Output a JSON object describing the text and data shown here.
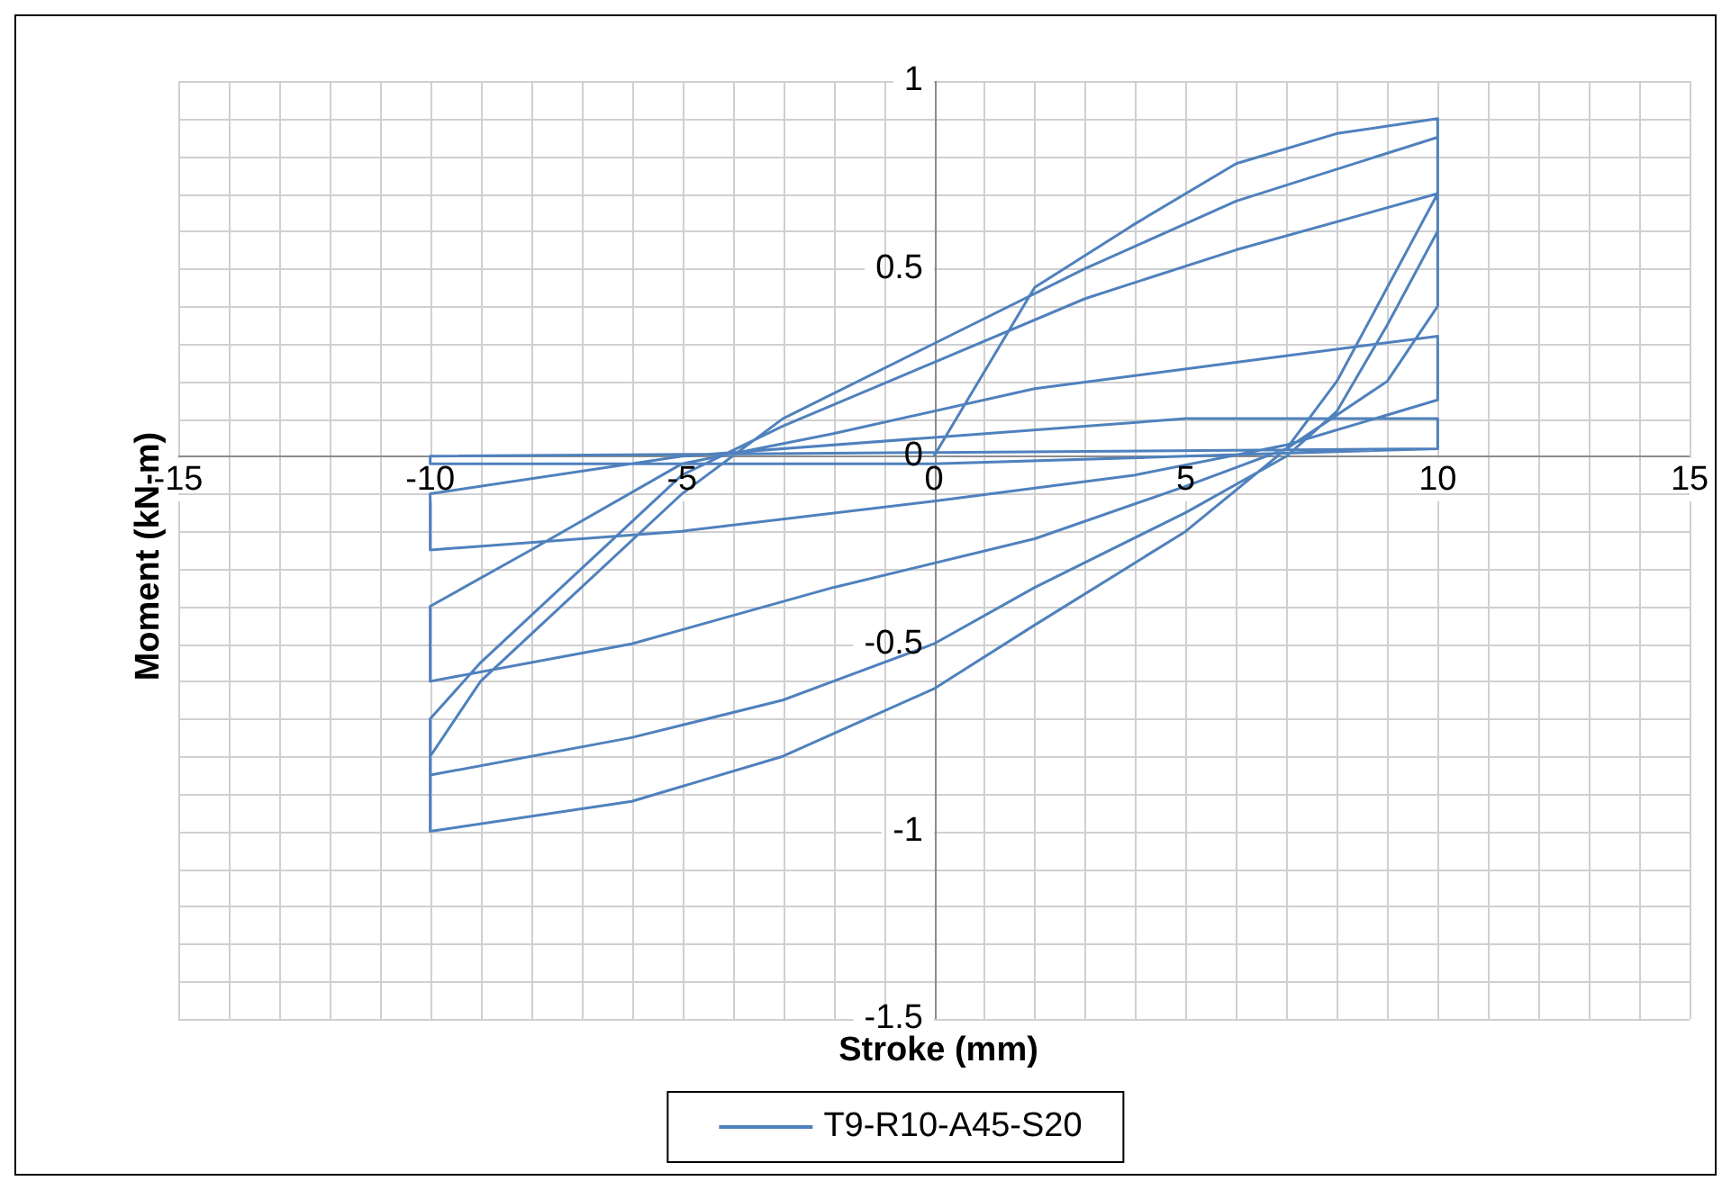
{
  "chart_data": {
    "type": "line",
    "xlabel": "Stroke (mm)",
    "ylabel": "Moment (kN-m)",
    "xlim": [
      -15,
      15
    ],
    "ylim": [
      -1.5,
      1
    ],
    "xticks": [
      -15,
      {
        "value": -14,
        "label": null
      },
      {
        "value": -13,
        "label": null
      },
      {
        "value": -12,
        "label": null
      },
      {
        "value": -11,
        "label": null
      },
      -10,
      {
        "value": -9,
        "label": null
      },
      {
        "value": -8,
        "label": null
      },
      {
        "value": -7,
        "label": null
      },
      {
        "value": -6,
        "label": null
      },
      -5,
      {
        "value": -4,
        "label": null
      },
      {
        "value": -3,
        "label": null
      },
      {
        "value": -2,
        "label": null
      },
      {
        "value": -1,
        "label": null
      },
      0,
      {
        "value": 1,
        "label": null
      },
      {
        "value": 2,
        "label": null
      },
      {
        "value": 3,
        "label": null
      },
      {
        "value": 4,
        "label": null
      },
      5,
      {
        "value": 6,
        "label": null
      },
      {
        "value": 7,
        "label": null
      },
      {
        "value": 8,
        "label": null
      },
      {
        "value": 9,
        "label": null
      },
      10,
      {
        "value": 11,
        "label": null
      },
      {
        "value": 12,
        "label": null
      },
      {
        "value": 13,
        "label": null
      },
      {
        "value": 14,
        "label": null
      },
      15
    ],
    "yticks": [
      -1.5,
      {
        "value": -1.4,
        "label": null
      },
      {
        "value": -1.3,
        "label": null
      },
      {
        "value": -1.2,
        "label": null
      },
      {
        "value": -1.1,
        "label": null
      },
      -1,
      {
        "value": -0.9,
        "label": null
      },
      {
        "value": -0.8,
        "label": null
      },
      {
        "value": -0.7,
        "label": null
      },
      {
        "value": -0.6,
        "label": null
      },
      -0.5,
      {
        "value": -0.4,
        "label": null
      },
      {
        "value": -0.3,
        "label": null
      },
      {
        "value": -0.2,
        "label": null
      },
      {
        "value": -0.1,
        "label": null
      },
      0,
      {
        "value": 0.1,
        "label": null
      },
      {
        "value": 0.2,
        "label": null
      },
      {
        "value": 0.3,
        "label": null
      },
      {
        "value": 0.4,
        "label": null
      },
      0.5,
      {
        "value": 0.6,
        "label": null
      },
      {
        "value": 0.7,
        "label": null
      },
      {
        "value": 0.8,
        "label": null
      },
      {
        "value": 0.9,
        "label": null
      },
      1
    ],
    "grid": true,
    "legend": "bottom",
    "marker": "none",
    "line_style": "solid",
    "series": [
      {
        "name": "T9-R10-A45-S20",
        "color": "#4f81bd",
        "x": [
          0,
          2,
          4,
          6,
          8,
          10,
          10,
          9,
          8,
          7,
          5,
          2,
          0,
          -3,
          -6,
          -10,
          -10,
          -9,
          -7,
          -5,
          -3,
          0,
          3,
          6,
          10,
          10,
          9,
          8,
          7,
          5,
          2,
          0,
          -3,
          -6,
          -10,
          -10,
          -9,
          -7,
          -5,
          -3,
          0,
          3,
          6,
          10,
          10,
          9,
          7,
          5,
          2,
          -2,
          -6,
          -10,
          -10,
          -8,
          -5,
          -2,
          2,
          6,
          10,
          10,
          7,
          4,
          0,
          -5,
          -10,
          -10,
          -5,
          0,
          5,
          10,
          10,
          5,
          0,
          -10,
          -10,
          0,
          10
        ],
        "values": [
          0,
          0.45,
          0.62,
          0.78,
          0.86,
          0.9,
          0.7,
          0.45,
          0.2,
          0.02,
          -0.2,
          -0.45,
          -0.62,
          -0.8,
          -0.92,
          -1.0,
          -0.8,
          -0.6,
          -0.35,
          -0.1,
          0.1,
          0.3,
          0.5,
          0.68,
          0.85,
          0.6,
          0.35,
          0.12,
          0.0,
          -0.15,
          -0.35,
          -0.5,
          -0.65,
          -0.75,
          -0.85,
          -0.7,
          -0.55,
          -0.3,
          -0.05,
          0.08,
          0.25,
          0.42,
          0.55,
          0.7,
          0.4,
          0.2,
          0.02,
          -0.08,
          -0.22,
          -0.35,
          -0.5,
          -0.6,
          -0.4,
          -0.25,
          -0.02,
          0.06,
          0.18,
          0.25,
          0.32,
          0.15,
          0.03,
          -0.05,
          -0.12,
          -0.2,
          -0.25,
          -0.1,
          0.0,
          0.05,
          0.1,
          0.1,
          0.02,
          0,
          -0.02,
          -0.02,
          0,
          0.01,
          0.02
        ]
      }
    ]
  }
}
